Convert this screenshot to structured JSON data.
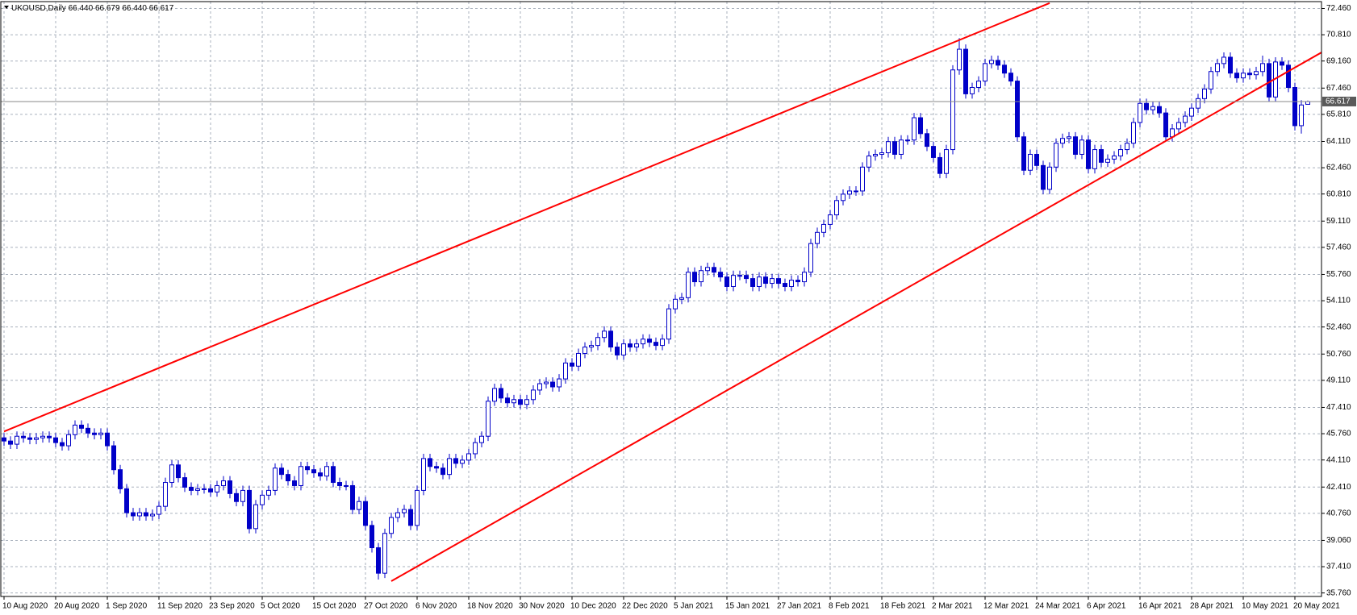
{
  "chart_data": {
    "type": "candlestick",
    "title": "UKOUSD,Daily",
    "last_bar": {
      "values": [
        66.44,
        66.679,
        66.44,
        66.617
      ],
      "value_labels": [
        "66.440",
        "66.679",
        "66.440",
        "66.617"
      ]
    },
    "categories": [
      "10 Aug 2020",
      null,
      null,
      null,
      null,
      null,
      null,
      null,
      "20 Aug 2020",
      null,
      null,
      null,
      null,
      null,
      null,
      null,
      "1 Sep 2020",
      null,
      null,
      null,
      null,
      null,
      null,
      null,
      "11 Sep 2020",
      null,
      null,
      null,
      null,
      null,
      null,
      null,
      "23 Sep 2020",
      null,
      null,
      null,
      null,
      null,
      null,
      null,
      "5 Oct 2020",
      null,
      null,
      null,
      null,
      null,
      null,
      null,
      "15 Oct 2020",
      null,
      null,
      null,
      null,
      null,
      null,
      null,
      "27 Oct 2020",
      null,
      null,
      null,
      null,
      null,
      null,
      null,
      "6 Nov 2020",
      null,
      null,
      null,
      null,
      null,
      null,
      null,
      "18 Nov 2020",
      null,
      null,
      null,
      null,
      null,
      null,
      null,
      "30 Nov 2020",
      null,
      null,
      null,
      null,
      null,
      null,
      null,
      "10 Dec 2020",
      null,
      null,
      null,
      null,
      null,
      null,
      null,
      "22 Dec 2020",
      null,
      null,
      null,
      null,
      null,
      null,
      null,
      "5 Jan 2021",
      null,
      null,
      null,
      null,
      null,
      null,
      null,
      "15 Jan 2021",
      null,
      null,
      null,
      null,
      null,
      null,
      null,
      "27 Jan 2021",
      null,
      null,
      null,
      null,
      null,
      null,
      null,
      "8 Feb 2021",
      null,
      null,
      null,
      null,
      null,
      null,
      null,
      "18 Feb 2021",
      null,
      null,
      null,
      null,
      null,
      null,
      null,
      "2 Mar 2021",
      null,
      null,
      null,
      null,
      null,
      null,
      null,
      "12 Mar 2021",
      null,
      null,
      null,
      null,
      null,
      null,
      null,
      "24 Mar 2021",
      null,
      null,
      null,
      null,
      null,
      null,
      null,
      "6 Apr 2021",
      null,
      null,
      null,
      null,
      null,
      null,
      null,
      "16 Apr 2021",
      null,
      null,
      null,
      null,
      null,
      null,
      null,
      "28 Apr 2021",
      null,
      null,
      null,
      null,
      null,
      null,
      null,
      "10 May 2021",
      null,
      null,
      null,
      null,
      null,
      null,
      null,
      "20 May 2021",
      null,
      null
    ],
    "open": [
      45.5,
      45.3,
      45.1,
      45.6,
      45.5,
      45.4,
      45.5,
      45.6,
      45.5,
      45.2,
      45.0,
      45.7,
      46.3,
      46.1,
      45.8,
      45.7,
      45.8,
      45.0,
      43.5,
      42.3,
      40.8,
      40.6,
      40.8,
      40.6,
      40.7,
      41.2,
      42.7,
      43.8,
      43.0,
      42.4,
      42.2,
      42.3,
      42.3,
      42.1,
      42.5,
      42.8,
      42.0,
      41.5,
      42.2,
      39.8,
      41.3,
      41.9,
      42.2,
      43.6,
      43.2,
      42.8,
      42.5,
      43.7,
      43.5,
      43.3,
      43.1,
      43.7,
      42.7,
      42.5,
      42.5,
      41.0,
      41.5,
      40.0,
      38.6,
      37.0,
      39.5,
      40.5,
      40.8,
      41.0,
      40.0,
      42.2,
      44.2,
      43.7,
      43.6,
      43.2,
      44.2,
      43.9,
      44.1,
      44.5,
      45.2,
      45.6,
      47.8,
      48.6,
      48.0,
      47.7,
      47.9,
      47.6,
      47.9,
      48.5,
      48.9,
      49.0,
      48.7,
      49.2,
      50.2,
      50.0,
      50.8,
      51.2,
      51.3,
      51.8,
      52.2,
      51.2,
      50.7,
      51.4,
      51.2,
      51.4,
      51.7,
      51.5,
      51.3,
      51.7,
      53.6,
      54.2,
      54.3,
      55.9,
      55.3,
      56.0,
      56.2,
      55.9,
      55.6,
      55.0,
      55.7,
      55.7,
      55.5,
      55.0,
      55.6,
      55.2,
      55.5,
      55.2,
      55.0,
      55.4,
      55.3,
      55.9,
      57.7,
      58.4,
      58.9,
      59.5,
      60.4,
      60.8,
      61.0,
      61.0,
      62.5,
      63.2,
      63.3,
      63.4,
      64.1,
      63.3,
      64.2,
      64.2,
      65.6,
      64.6,
      63.8,
      63.1,
      62.1,
      63.6,
      68.6,
      69.9,
      67.1,
      67.5,
      67.9,
      69.0,
      69.2,
      68.9,
      68.4,
      67.9,
      64.4,
      62.3,
      63.3,
      62.6,
      61.1,
      62.5,
      64.0,
      64.3,
      64.4,
      63.3,
      64.2,
      62.4,
      63.6,
      62.8,
      63.0,
      63.2,
      63.6,
      64.0,
      65.3,
      66.5,
      66.1,
      66.3,
      65.9,
      64.4,
      64.9,
      65.3,
      65.7,
      66.2,
      66.8,
      67.4,
      68.5,
      69.0,
      69.4,
      68.4,
      68.1,
      68.4,
      68.3,
      68.5,
      69.0,
      66.9,
      69.1,
      68.9,
      67.5,
      65.1,
      66.44
    ],
    "high": [
      45.8,
      45.6,
      45.9,
      45.9,
      45.8,
      45.8,
      45.9,
      45.9,
      45.8,
      45.5,
      46.0,
      46.6,
      46.6,
      46.4,
      46.1,
      46.1,
      46.1,
      45.3,
      43.8,
      42.6,
      41.1,
      41.1,
      41.1,
      41.0,
      41.5,
      43.0,
      44.1,
      44.1,
      43.3,
      42.7,
      42.6,
      42.6,
      42.6,
      42.8,
      43.1,
      43.1,
      42.3,
      42.5,
      42.5,
      41.6,
      42.2,
      42.5,
      43.9,
      43.9,
      43.5,
      43.1,
      44.0,
      44.0,
      43.8,
      43.6,
      44.0,
      44.0,
      43.0,
      42.8,
      42.8,
      41.8,
      41.8,
      40.3,
      38.9,
      39.8,
      40.8,
      41.1,
      41.3,
      41.3,
      42.5,
      44.5,
      44.5,
      44.0,
      43.9,
      44.5,
      44.5,
      44.4,
      44.8,
      45.5,
      45.9,
      48.1,
      48.9,
      48.9,
      48.3,
      48.2,
      48.2,
      48.2,
      48.8,
      49.2,
      49.3,
      49.3,
      49.5,
      50.5,
      50.5,
      51.1,
      51.5,
      51.6,
      52.1,
      52.5,
      52.5,
      51.5,
      51.7,
      51.7,
      51.7,
      52.0,
      52.0,
      51.8,
      52.0,
      53.9,
      54.5,
      54.6,
      56.2,
      56.2,
      56.3,
      56.5,
      56.5,
      56.2,
      55.9,
      56.0,
      56.0,
      56.0,
      55.8,
      55.9,
      55.9,
      55.8,
      55.8,
      55.5,
      55.7,
      55.7,
      56.2,
      58.0,
      58.7,
      59.2,
      59.8,
      60.7,
      61.1,
      61.3,
      61.3,
      62.8,
      63.5,
      63.6,
      63.7,
      64.4,
      64.4,
      64.5,
      64.5,
      65.9,
      65.9,
      64.9,
      64.1,
      63.4,
      63.9,
      68.9,
      70.6,
      70.2,
      67.8,
      68.2,
      69.3,
      69.5,
      69.5,
      69.2,
      68.7,
      68.2,
      64.7,
      63.6,
      63.6,
      62.9,
      62.8,
      64.3,
      64.6,
      64.7,
      64.7,
      64.5,
      64.5,
      63.9,
      63.9,
      63.3,
      63.5,
      63.9,
      64.3,
      65.6,
      66.8,
      66.8,
      66.6,
      66.6,
      66.2,
      65.2,
      65.6,
      66.0,
      66.5,
      67.1,
      67.7,
      68.8,
      69.3,
      69.7,
      69.7,
      68.7,
      68.7,
      68.7,
      68.8,
      69.5,
      69.3,
      69.4,
      69.4,
      69.2,
      67.8,
      66.7,
      66.679
    ],
    "low": [
      45.0,
      44.8,
      44.8,
      45.2,
      45.1,
      45.1,
      45.2,
      45.2,
      44.9,
      44.7,
      44.7,
      45.4,
      45.8,
      45.5,
      45.4,
      45.4,
      44.7,
      43.2,
      42.0,
      40.5,
      40.3,
      40.3,
      40.3,
      40.3,
      40.4,
      40.9,
      42.4,
      42.7,
      42.1,
      41.9,
      41.9,
      42.0,
      41.8,
      41.8,
      42.2,
      41.7,
      41.2,
      41.2,
      39.5,
      39.5,
      41.0,
      41.6,
      41.9,
      42.9,
      42.5,
      42.2,
      42.2,
      43.2,
      43.0,
      42.8,
      42.8,
      42.4,
      42.2,
      42.2,
      40.7,
      40.7,
      39.7,
      38.3,
      36.6,
      36.7,
      39.2,
      40.2,
      40.5,
      39.7,
      39.7,
      41.9,
      43.4,
      43.3,
      42.9,
      42.9,
      43.6,
      43.6,
      43.8,
      44.2,
      44.9,
      45.3,
      47.5,
      47.7,
      47.4,
      47.4,
      47.3,
      47.3,
      47.6,
      48.2,
      48.6,
      48.4,
      48.4,
      48.9,
      49.7,
      49.7,
      50.5,
      50.9,
      51.0,
      51.5,
      50.9,
      50.4,
      50.4,
      50.9,
      50.9,
      51.1,
      51.2,
      51.0,
      51.0,
      51.4,
      53.3,
      53.9,
      54.0,
      55.0,
      55.0,
      55.7,
      55.6,
      55.3,
      54.7,
      54.7,
      55.4,
      55.2,
      54.7,
      54.7,
      54.9,
      54.9,
      54.9,
      54.7,
      54.7,
      55.0,
      55.0,
      55.6,
      57.4,
      58.1,
      58.6,
      59.2,
      60.1,
      60.5,
      60.7,
      60.7,
      62.2,
      62.9,
      63.0,
      63.1,
      63.0,
      63.0,
      63.9,
      63.9,
      64.3,
      63.5,
      62.8,
      61.8,
      61.8,
      63.3,
      68.3,
      66.8,
      66.8,
      67.2,
      67.6,
      68.7,
      68.6,
      68.1,
      67.6,
      64.1,
      62.0,
      62.0,
      62.3,
      60.8,
      60.8,
      62.2,
      63.7,
      64.0,
      63.0,
      63.0,
      62.1,
      62.1,
      62.5,
      62.5,
      62.7,
      62.9,
      63.3,
      63.7,
      65.0,
      65.8,
      65.8,
      65.6,
      64.1,
      64.1,
      64.6,
      65.0,
      65.4,
      65.9,
      66.5,
      67.1,
      68.2,
      68.7,
      68.1,
      67.8,
      67.8,
      68.0,
      68.0,
      68.2,
      66.6,
      66.6,
      68.6,
      67.2,
      64.8,
      64.6,
      66.44
    ],
    "close": [
      45.3,
      45.1,
      45.6,
      45.5,
      45.4,
      45.5,
      45.6,
      45.5,
      45.2,
      45.0,
      45.7,
      46.3,
      46.1,
      45.8,
      45.7,
      45.8,
      45.0,
      43.5,
      42.3,
      40.8,
      40.6,
      40.8,
      40.6,
      40.7,
      41.2,
      42.7,
      43.8,
      43.0,
      42.4,
      42.2,
      42.3,
      42.3,
      42.1,
      42.5,
      42.8,
      42.0,
      41.5,
      42.2,
      39.8,
      41.3,
      41.9,
      42.2,
      43.6,
      43.2,
      42.8,
      42.5,
      43.7,
      43.5,
      43.3,
      43.1,
      43.7,
      42.7,
      42.5,
      42.5,
      41.0,
      41.5,
      40.0,
      38.6,
      37.0,
      39.5,
      40.5,
      40.8,
      41.0,
      40.0,
      42.2,
      44.2,
      43.7,
      43.6,
      43.2,
      44.2,
      43.9,
      44.1,
      44.5,
      45.2,
      45.6,
      47.8,
      48.6,
      48.0,
      47.7,
      47.9,
      47.6,
      47.9,
      48.5,
      48.9,
      49.0,
      48.7,
      49.2,
      50.2,
      50.0,
      50.8,
      51.2,
      51.3,
      51.8,
      52.2,
      51.2,
      50.7,
      51.4,
      51.2,
      51.4,
      51.7,
      51.5,
      51.3,
      51.7,
      53.6,
      54.2,
      54.3,
      55.9,
      55.3,
      56.0,
      56.2,
      55.9,
      55.6,
      55.0,
      55.7,
      55.7,
      55.5,
      55.0,
      55.6,
      55.2,
      55.5,
      55.2,
      55.0,
      55.4,
      55.3,
      55.9,
      57.7,
      58.4,
      58.9,
      59.5,
      60.4,
      60.8,
      61.0,
      61.0,
      62.5,
      63.2,
      63.3,
      63.4,
      64.1,
      63.3,
      64.2,
      64.2,
      65.6,
      64.6,
      63.8,
      63.1,
      62.1,
      63.6,
      68.6,
      69.9,
      67.1,
      67.5,
      67.9,
      69.0,
      69.2,
      68.9,
      68.4,
      67.9,
      64.4,
      62.3,
      63.3,
      62.6,
      61.1,
      62.5,
      64.0,
      64.3,
      64.4,
      63.3,
      64.2,
      62.4,
      63.6,
      62.8,
      63.0,
      63.2,
      63.6,
      64.0,
      65.3,
      66.5,
      66.1,
      66.3,
      65.9,
      64.4,
      64.9,
      65.3,
      65.7,
      66.2,
      66.8,
      67.4,
      68.5,
      69.0,
      69.4,
      68.4,
      68.1,
      68.4,
      68.3,
      68.5,
      69.0,
      66.9,
      69.1,
      68.9,
      67.5,
      65.1,
      66.4,
      66.617
    ],
    "color": "#0000c8",
    "ylim": [
      35.54,
      72.89
    ],
    "yticks": [
      {
        "value": 72.46,
        "label": "72.460"
      },
      {
        "value": 70.81,
        "label": "70.810"
      },
      {
        "value": 69.16,
        "label": "69.160"
      },
      {
        "value": 67.46,
        "label": "67.460"
      },
      {
        "value": 65.81,
        "label": "65.810"
      },
      {
        "value": 64.11,
        "label": "64.110"
      },
      {
        "value": 62.46,
        "label": "62.460"
      },
      {
        "value": 60.81,
        "label": "60.810"
      },
      {
        "value": 59.11,
        "label": "59.110"
      },
      {
        "value": 57.46,
        "label": "57.460"
      },
      {
        "value": 55.76,
        "label": "55.760"
      },
      {
        "value": 54.11,
        "label": "54.110"
      },
      {
        "value": 52.46,
        "label": "52.460"
      },
      {
        "value": 50.76,
        "label": "50.760"
      },
      {
        "value": 49.11,
        "label": "49.110"
      },
      {
        "value": 47.41,
        "label": "47.410"
      },
      {
        "value": 45.76,
        "label": "45.760"
      },
      {
        "value": 44.11,
        "label": "44.110"
      },
      {
        "value": 42.41,
        "label": "42.410"
      },
      {
        "value": 40.76,
        "label": "40.760"
      },
      {
        "value": 39.06,
        "label": "39.060"
      },
      {
        "value": 37.41,
        "label": "37.410"
      },
      {
        "value": 35.76,
        "label": "35.760"
      }
    ],
    "grid": true,
    "grid_color": "#a9b1bd",
    "lines": [
      {
        "color": "#ff0000",
        "x": [
          0,
          162
        ],
        "y": [
          45.9,
          72.8
        ]
      },
      {
        "color": "#ff0000",
        "x": [
          60,
          205
        ],
        "y": [
          36.5,
          69.9
        ]
      }
    ]
  }
}
